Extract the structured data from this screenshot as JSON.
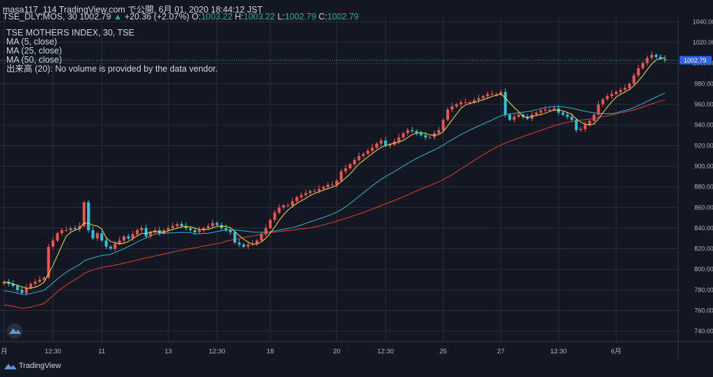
{
  "header": {
    "line1": "masa117_114 TradingView.com で公開, 6月 01, 2020 18:44:12 JST",
    "symbol": "TSE_DLY:MOS, 30",
    "last": "1002.79",
    "arrow": "▲",
    "change": "+20.36 (+2.07%)",
    "o_label": "O:",
    "o_value": "1003.22",
    "h_label": "H:",
    "h_value": "1003.22",
    "l_label": "L:",
    "l_value": "1002.79",
    "c_label": "C:",
    "c_value": "1002.79"
  },
  "legend": {
    "title": "TSE MOTHERS INDEX, 30, TSE",
    "ma5": "MA (5, close)",
    "ma25": "MA (25, close)",
    "ma50": "MA (50, close)",
    "volume": "出来高 (20): No volume is provided by the data vendor."
  },
  "price_tag": "1002.79",
  "footer": {
    "brand": "TradingView"
  },
  "colors": {
    "up": "#ef5350",
    "down": "#26c6da",
    "ma5": "#f0e04a",
    "ma25": "#29b6cf",
    "ma50": "#e0402f"
  },
  "chart_data": {
    "type": "candlestick",
    "ylim": [
      730,
      1045
    ],
    "y_ticks": [
      "1040.00",
      "1020.00",
      "1000.00",
      "980.00",
      "960.00",
      "940.00",
      "920.00",
      "900.00",
      "880.00",
      "860.00",
      "840.00",
      "820.00",
      "800.00",
      "780.00",
      "760.00",
      "740.00"
    ],
    "x_ticks": [
      "月",
      "12:30",
      "11",
      "13",
      "12:30",
      "18",
      "20",
      "12:30",
      "25",
      "27",
      "12:30",
      "6月"
    ],
    "last_price": 1002.79,
    "close": [
      788,
      786,
      784,
      780,
      777,
      782,
      786,
      788,
      790,
      792,
      822,
      828,
      835,
      838,
      838,
      840,
      839,
      842,
      865,
      838,
      830,
      835,
      828,
      822,
      820,
      825,
      828,
      832,
      830,
      834,
      838,
      840,
      832,
      836,
      838,
      835,
      838,
      840,
      842,
      844,
      842,
      840,
      838,
      836,
      838,
      840,
      842,
      845,
      843,
      840,
      838,
      836,
      826,
      824,
      822,
      824,
      825,
      828,
      834,
      840,
      848,
      855,
      860,
      862,
      862,
      866,
      870,
      872,
      874,
      876,
      876,
      878,
      880,
      882,
      882,
      886,
      895,
      898,
      902,
      906,
      910,
      912,
      915,
      918,
      922,
      925,
      920,
      921,
      924,
      928,
      932,
      935,
      934,
      932,
      930,
      928,
      928,
      932,
      935,
      945,
      955,
      958,
      960,
      962,
      962,
      962,
      964,
      966,
      968,
      970,
      970,
      970,
      972,
      950,
      945,
      948,
      950,
      948,
      946,
      950,
      952,
      954,
      955,
      955,
      956,
      952,
      950,
      948,
      945,
      935,
      936,
      940,
      944,
      950,
      960,
      965,
      968,
      970,
      972,
      974,
      976,
      980,
      988,
      995,
      1000,
      1005,
      1008,
      1006,
      1004,
      1003
    ]
  }
}
